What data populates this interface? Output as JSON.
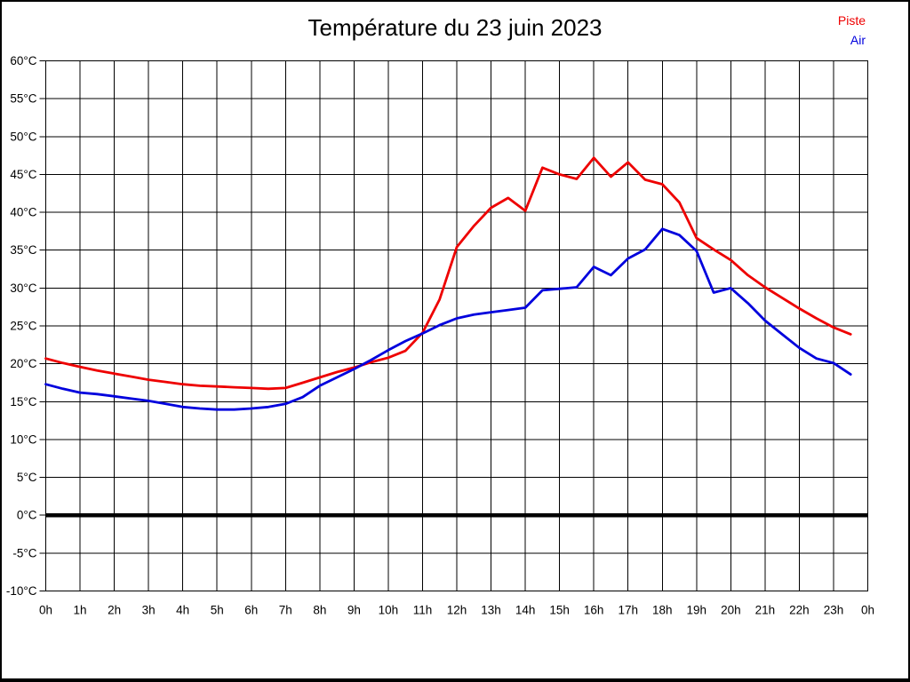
{
  "title": "Température du 23 juin 2023",
  "legend": {
    "items": [
      {
        "label": "Piste",
        "color": "#ee0000"
      },
      {
        "label": "Air",
        "color": "#0000dd"
      }
    ]
  },
  "colors": {
    "grid": "#000000",
    "axis_text": "#000000",
    "zero_line": "#000000",
    "background": "#ffffff"
  },
  "chart_data": {
    "type": "line",
    "title": "Température du 23 juin 2023",
    "xlabel": "",
    "ylabel": "",
    "xlim": [
      0,
      24
    ],
    "ylim": [
      -10,
      60
    ],
    "y_tick_step": 5,
    "y_tick_suffix": "°C",
    "x_ticks": [
      "0h",
      "1h",
      "2h",
      "3h",
      "4h",
      "5h",
      "6h",
      "7h",
      "8h",
      "9h",
      "10h",
      "11h",
      "12h",
      "13h",
      "14h",
      "15h",
      "16h",
      "17h",
      "18h",
      "19h",
      "20h",
      "21h",
      "22h",
      "23h",
      "0h"
    ],
    "grid": true,
    "zero_line_value": 0,
    "legend_position": "top-right",
    "x": [
      0,
      0.5,
      1,
      1.5,
      2,
      2.5,
      3,
      3.5,
      4,
      4.5,
      5,
      5.5,
      6,
      6.5,
      7,
      7.5,
      8,
      8.5,
      9,
      9.5,
      10,
      10.5,
      11,
      11.5,
      12,
      12.5,
      13,
      13.5,
      14,
      14.5,
      15,
      15.5,
      16,
      16.5,
      17,
      17.5,
      18,
      18.5,
      19,
      19.5,
      20,
      20.5,
      21,
      21.5,
      22,
      22.5,
      23,
      23.5
    ],
    "series": [
      {
        "name": "Piste",
        "color": "#ee0000",
        "values": [
          20.7,
          20.1,
          19.6,
          19.1,
          18.7,
          18.3,
          17.9,
          17.6,
          17.3,
          17.1,
          17.0,
          16.9,
          16.8,
          16.7,
          16.8,
          17.5,
          18.2,
          18.9,
          19.5,
          20.2,
          20.8,
          21.7,
          24.1,
          28.5,
          35.4,
          38.2,
          40.6,
          41.9,
          40.2,
          45.9,
          45.0,
          44.4,
          47.2,
          44.7,
          46.6,
          44.3,
          43.7,
          41.3,
          36.6,
          35.1,
          33.7,
          31.7,
          30.1,
          28.7,
          27.3,
          26.0,
          24.8,
          23.9
        ]
      },
      {
        "name": "Air",
        "color": "#0000dd",
        "values": [
          17.3,
          16.7,
          16.2,
          16.0,
          15.7,
          15.4,
          15.1,
          14.7,
          14.3,
          14.1,
          13.95,
          13.95,
          14.1,
          14.3,
          14.7,
          15.6,
          17.1,
          18.2,
          19.3,
          20.5,
          21.8,
          23.0,
          24.0,
          25.1,
          26.0,
          26.5,
          26.8,
          27.1,
          27.4,
          29.7,
          29.9,
          30.1,
          32.8,
          31.7,
          33.9,
          35.1,
          37.8,
          37.0,
          34.9,
          29.4,
          30.0,
          28.0,
          25.7,
          23.9,
          22.1,
          20.7,
          20.1,
          18.6
        ]
      }
    ]
  }
}
